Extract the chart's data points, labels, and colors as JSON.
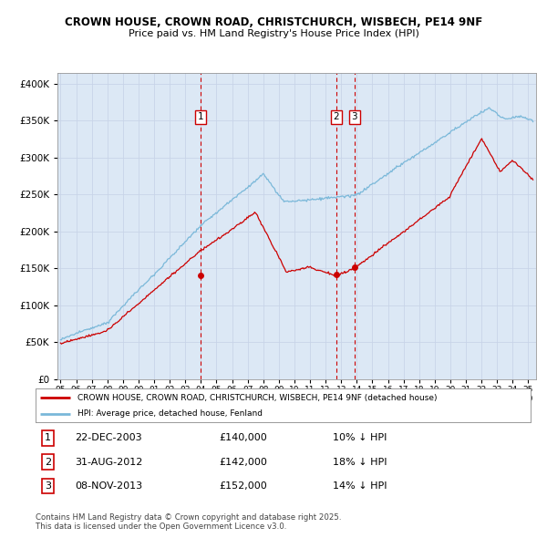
{
  "title_line1": "CROWN HOUSE, CROWN ROAD, CHRISTCHURCH, WISBECH, PE14 9NF",
  "title_line2": "Price paid vs. HM Land Registry's House Price Index (HPI)",
  "ytick_values": [
    0,
    50000,
    100000,
    150000,
    200000,
    250000,
    300000,
    350000,
    400000
  ],
  "ylim": [
    0,
    415000
  ],
  "xlim_start": 1994.8,
  "xlim_end": 2025.5,
  "hpi_color": "#7ab8d9",
  "price_color": "#cc0000",
  "vline_color": "#cc0000",
  "grid_color": "#c8d4e8",
  "background_color": "#dce8f5",
  "legend_label_red": "CROWN HOUSE, CROWN ROAD, CHRISTCHURCH, WISBECH, PE14 9NF (detached house)",
  "legend_label_blue": "HPI: Average price, detached house, Fenland",
  "transactions": [
    {
      "num": 1,
      "date": "22-DEC-2003",
      "price": 140000,
      "pct": "10%",
      "direction": "↓",
      "x": 2003.97
    },
    {
      "num": 2,
      "date": "31-AUG-2012",
      "price": 142000,
      "pct": "18%",
      "direction": "↓",
      "x": 2012.67
    },
    {
      "num": 3,
      "date": "08-NOV-2013",
      "price": 152000,
      "pct": "14%",
      "direction": "↓",
      "x": 2013.85
    }
  ],
  "footnote": "Contains HM Land Registry data © Crown copyright and database right 2025.\nThis data is licensed under the Open Government Licence v3.0."
}
